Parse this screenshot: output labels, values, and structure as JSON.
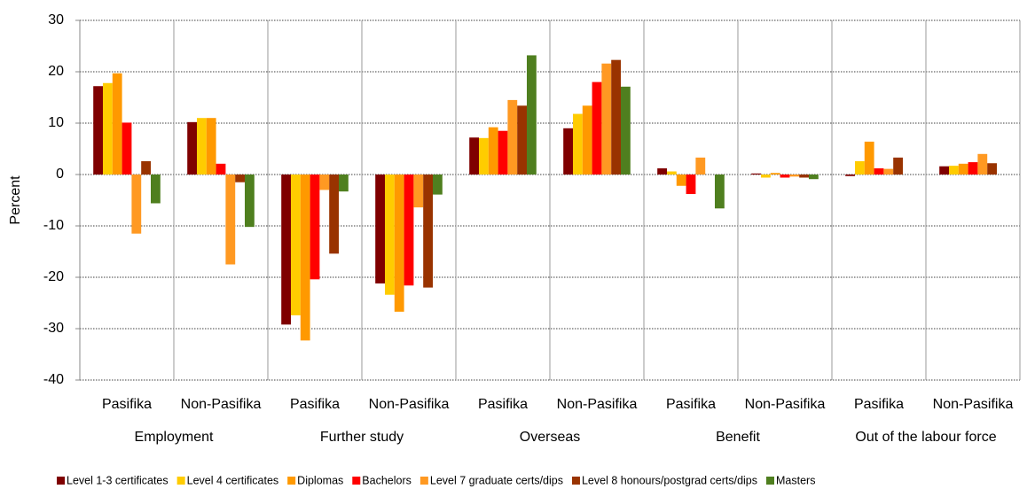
{
  "chart_data": {
    "type": "bar",
    "y_label": "Percent",
    "categories": [
      "Pasifika",
      "Non-Pasifika",
      "Pasifika",
      "Non-Pasifika",
      "Pasifika",
      "Non-Pasifika",
      "Pasifika",
      "Non-Pasifika",
      "Pasifika",
      "Non-Pasifika"
    ],
    "groups": [
      "Employment",
      "Further study",
      "Overseas",
      "Benefit",
      "Out of the labour force"
    ],
    "series": [
      {
        "name": "Level 1-3 certificates",
        "color": "#7f0000",
        "values": [
          17.2,
          10.2,
          -29.2,
          -21.2,
          7.2,
          9.0,
          1.2,
          0.2,
          -0.3,
          1.6
        ]
      },
      {
        "name": "Level 4 certificates",
        "color": "#ffcc00",
        "values": [
          17.8,
          11.0,
          -27.4,
          -23.4,
          7.1,
          11.8,
          0.6,
          -0.6,
          2.6,
          1.7
        ]
      },
      {
        "name": "Diplomas",
        "color": "#ff9900",
        "values": [
          19.7,
          11.0,
          -32.3,
          -26.7,
          9.2,
          13.4,
          -2.2,
          0.3,
          6.4,
          2.1
        ]
      },
      {
        "name": "Bachelors",
        "color": "#ff0000",
        "values": [
          10.1,
          2.1,
          -20.4,
          -21.6,
          8.5,
          18.0,
          -3.8,
          -0.6,
          1.2,
          2.4
        ]
      },
      {
        "name": "Level 7 graduate certs/dips",
        "color": "#ff9922",
        "values": [
          -11.5,
          -17.5,
          -3.0,
          -6.4,
          14.5,
          21.6,
          3.3,
          -0.4,
          1.1,
          4.0
        ]
      },
      {
        "name": "Level 8 honours/postgrad certs/dips",
        "color": "#993300",
        "values": [
          2.6,
          -1.5,
          -15.4,
          -22.0,
          13.4,
          22.3,
          0,
          -0.6,
          3.3,
          2.2
        ]
      },
      {
        "name": "Masters",
        "color": "#4f7f1f",
        "values": [
          -5.6,
          -10.2,
          -3.3,
          -3.9,
          23.2,
          17.1,
          -6.6,
          -0.9,
          0,
          0
        ]
      }
    ],
    "ylim": [
      -40,
      30
    ],
    "yticks": [
      -40,
      -30,
      -20,
      -10,
      0,
      10,
      20,
      30
    ],
    "grid": true,
    "legend": "bottom"
  }
}
